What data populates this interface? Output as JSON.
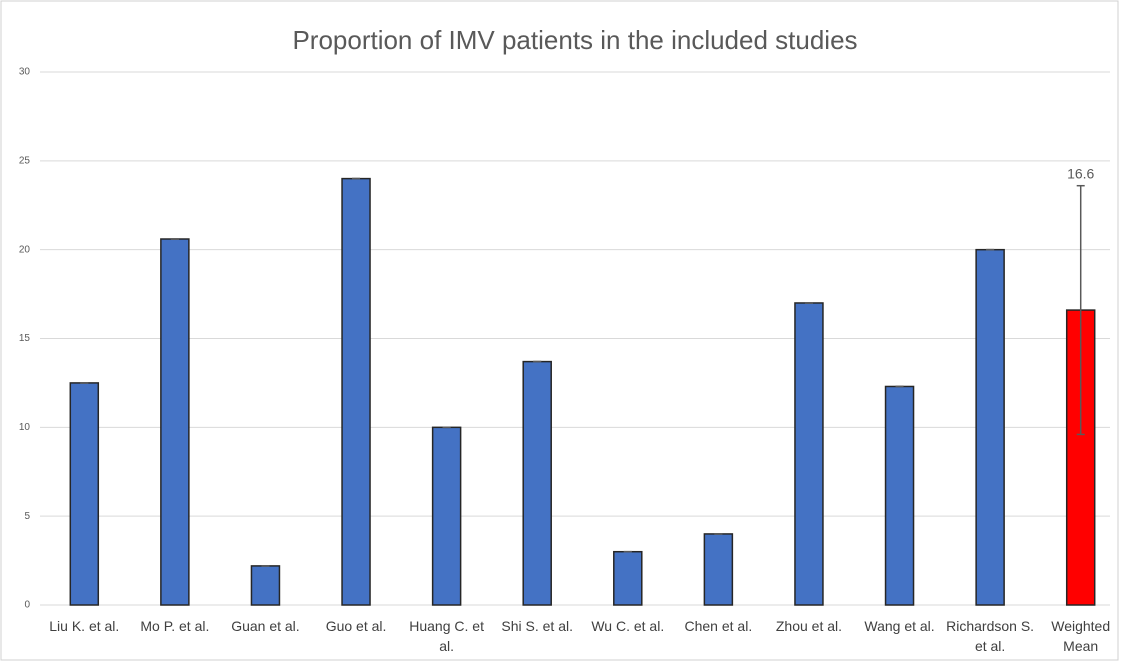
{
  "chart_data": {
    "type": "bar",
    "title": "Proportion of IMV patients in the included studies",
    "categories": [
      "Liu K. et al.",
      "Mo P. et al.",
      "Guan et al.",
      "Guo et al.",
      "Huang C. et al.",
      "Shi S. et al.",
      "Wu C. et al.",
      "Chen et al.",
      "Zhou et al.",
      "Wang et al.",
      "Richardson S. et al.",
      "Weighted Mean"
    ],
    "values": [
      12.5,
      20.6,
      2.2,
      24,
      10,
      13.7,
      3,
      4,
      17,
      12.3,
      20,
      16.6
    ],
    "errors": [
      0,
      0,
      0,
      0,
      0,
      0,
      0,
      0,
      0,
      0,
      0,
      7
    ],
    "value_labels": [
      null,
      null,
      null,
      null,
      null,
      null,
      null,
      null,
      null,
      null,
      null,
      "16.6"
    ],
    "colors": [
      "#4472c4",
      "#4472c4",
      "#4472c4",
      "#4472c4",
      "#4472c4",
      "#4472c4",
      "#4472c4",
      "#4472c4",
      "#4472c4",
      "#4472c4",
      "#4472c4",
      "#ff0000"
    ],
    "ylim": [
      0,
      30
    ],
    "yticks": [
      0,
      5,
      10,
      15,
      20,
      25,
      30
    ],
    "grid": true
  }
}
